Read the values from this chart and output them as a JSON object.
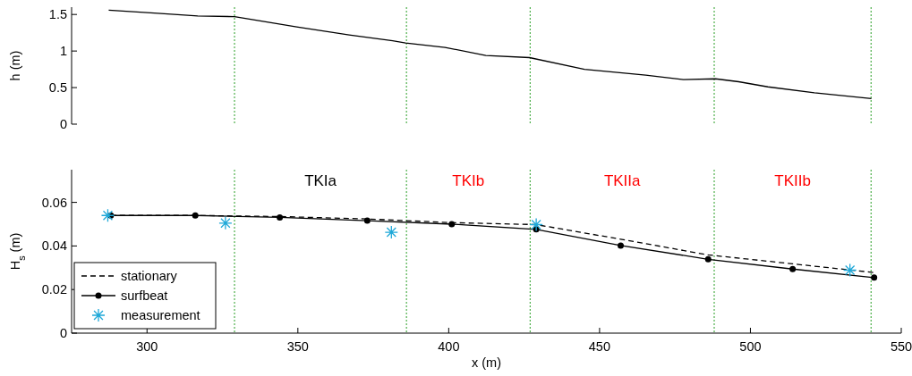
{
  "chart_data": [
    {
      "type": "line",
      "ylabel": "h (m)",
      "xlim": [
        275,
        550
      ],
      "ylim": [
        0,
        1.6
      ],
      "yticks": [
        0,
        0.5,
        1,
        1.5
      ],
      "tick_labels": "y",
      "grid": false,
      "legend": false,
      "series": [
        {
          "color": "#000000",
          "line_style": "solid",
          "marker": "none",
          "x": [
            287.3,
            302.4,
            316.8,
            329,
            349.6,
            367,
            381.4,
            385.7,
            398.8,
            412.3,
            426.8,
            445,
            465.3,
            477.8,
            488.4,
            496.1,
            505.8,
            521.2,
            540.1
          ],
          "values": [
            1.56,
            1.52,
            1.48,
            1.47,
            1.33,
            1.22,
            1.14,
            1.11,
            1.05,
            0.94,
            0.91,
            0.75,
            0.67,
            0.61,
            0.62,
            0.58,
            0.51,
            0.43,
            0.35
          ]
        }
      ],
      "ref_lines": [
        {
          "axis": "x",
          "value": 329,
          "color": "#4daf4a",
          "line_style": "dotted"
        },
        {
          "axis": "x",
          "value": 386,
          "color": "#4daf4a",
          "line_style": "dotted"
        },
        {
          "axis": "x",
          "value": 427,
          "color": "#4daf4a",
          "line_style": "dotted"
        },
        {
          "axis": "x",
          "value": 488,
          "color": "#4daf4a",
          "line_style": "dotted"
        },
        {
          "axis": "x",
          "value": 540,
          "color": "#4daf4a",
          "line_style": "dotted"
        }
      ]
    },
    {
      "type": "line",
      "xlabel": "x (m)",
      "ylabel": "H$_{s}$ (m)",
      "xlim": [
        275,
        550
      ],
      "xticks": [
        300,
        350,
        400,
        450,
        500,
        550
      ],
      "ylim": [
        0,
        0.075
      ],
      "yticks": [
        0,
        0.02,
        0.04,
        0.06
      ],
      "grid": false,
      "legend": "bottom left",
      "series": [
        {
          "name": "stationary",
          "color": "#000000",
          "line_style": "dashed",
          "marker": "none",
          "x": [
            288,
            316,
            344,
            373,
            401,
            429,
            457,
            486,
            514,
            541
          ],
          "values": [
            0.054,
            0.054,
            0.0535,
            0.0524,
            0.0507,
            0.0498,
            0.0431,
            0.0359,
            0.0318,
            0.0278
          ]
        },
        {
          "name": "surfbeat",
          "color": "#000000",
          "line_style": "solid",
          "marker": "circle",
          "x": [
            288,
            316,
            344,
            373,
            401,
            429,
            457,
            486,
            514,
            541
          ],
          "values": [
            0.054,
            0.054,
            0.0531,
            0.0516,
            0.05,
            0.0476,
            0.0402,
            0.0339,
            0.0294,
            0.0255
          ]
        },
        {
          "name": "measurement",
          "type": "scatter",
          "color": "#1fa8d8",
          "marker": "cross",
          "x": [
            287,
            326,
            381,
            429,
            533
          ],
          "values": [
            0.054,
            0.0505,
            0.0463,
            0.0498,
            0.0289
          ]
        }
      ],
      "ref_lines": [
        {
          "axis": "x",
          "value": 329,
          "color": "#4daf4a",
          "line_style": "dotted"
        },
        {
          "axis": "x",
          "value": 386,
          "color": "#4daf4a",
          "line_style": "dotted"
        },
        {
          "axis": "x",
          "value": 427,
          "color": "#4daf4a",
          "line_style": "dotted"
        },
        {
          "axis": "x",
          "value": 488,
          "color": "#4daf4a",
          "line_style": "dotted"
        },
        {
          "axis": "x",
          "value": 540,
          "color": "#4daf4a",
          "line_style": "dotted"
        }
      ],
      "annotations": [
        "TKIa",
        "TKIb",
        "TKIIa",
        "TKIIb"
      ]
    }
  ]
}
